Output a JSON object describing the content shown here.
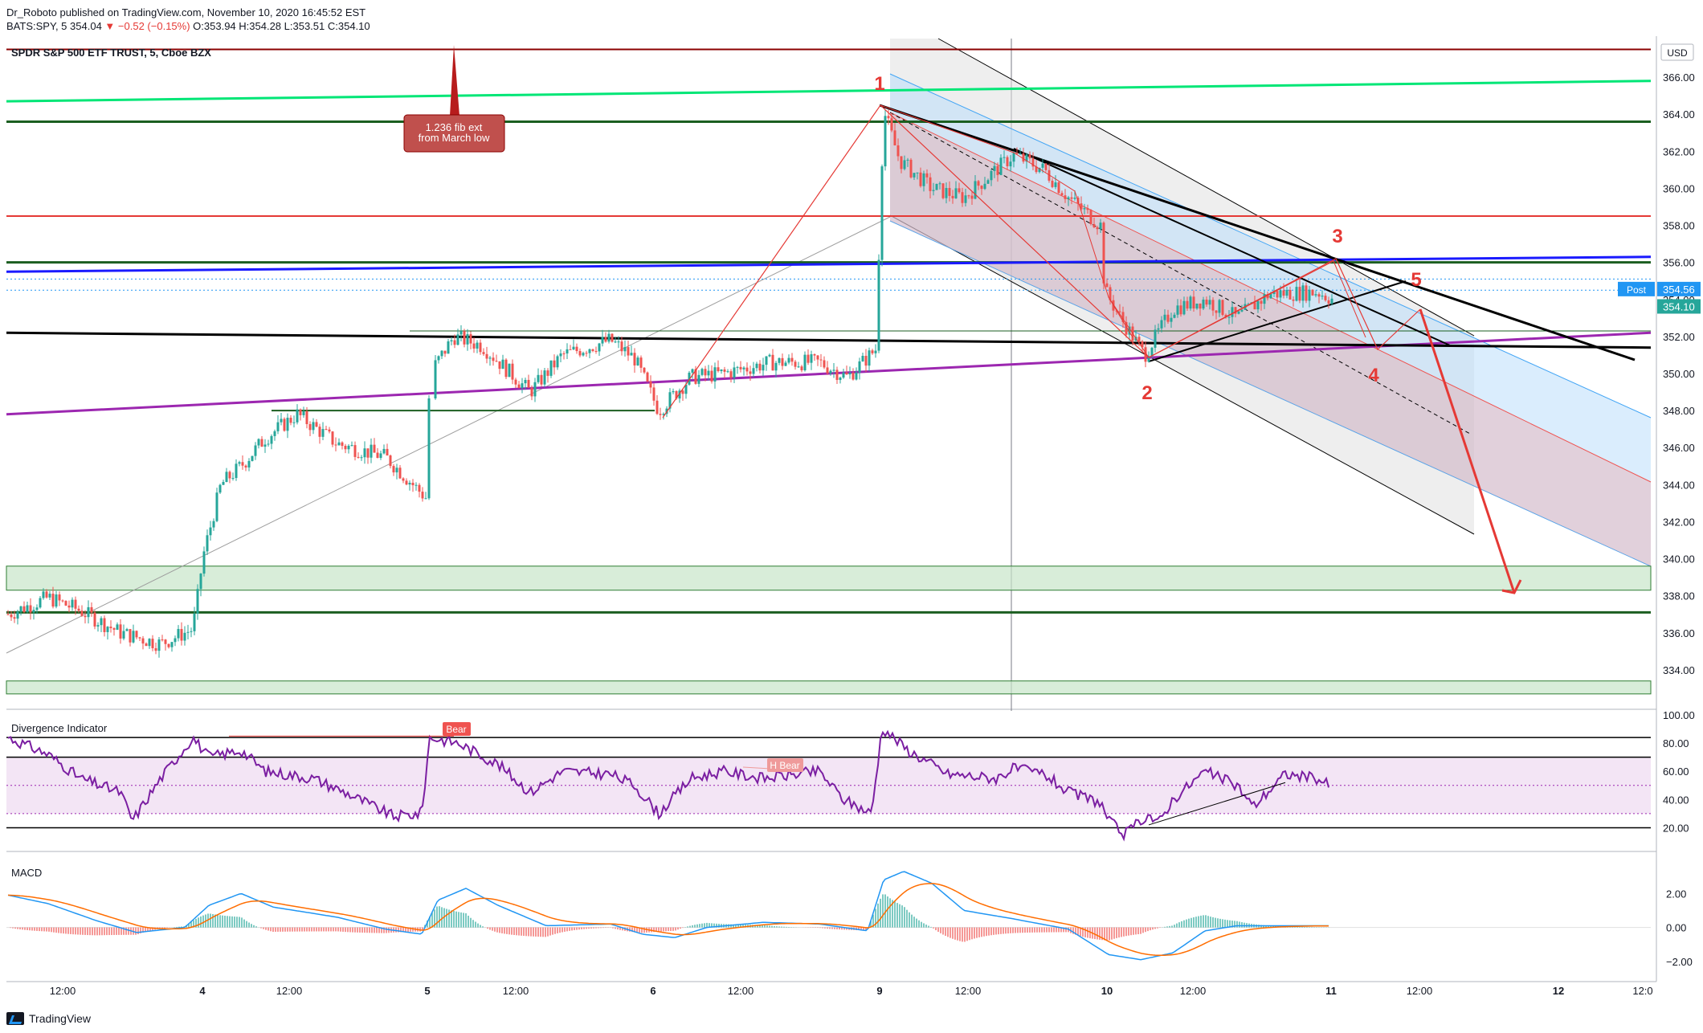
{
  "header": {
    "line1_user": "Dr_Roboto",
    "line1_text": " published on TradingView.com, November 10, 2020 16:45:52 EST",
    "symbol": "BATS:SPY, 5",
    "last": "354.04",
    "change": "−0.52 (−0.15%)",
    "ohlc": "O:353.94 H:354.28 L:353.51 C:354.10"
  },
  "main_title": "SPDR S&P 500 ETF TRUST, 5, Cboe BZX",
  "currency": "USD",
  "footer_brand": "TradingView",
  "colors": {
    "up": "#26a69a",
    "down": "#ef5350",
    "green_line": "#00e676",
    "dark_green": "#1b5e20",
    "red_line": "#e53935",
    "blue_line": "#1a1aff",
    "purple_line": "#9c27b0",
    "black_line": "#000000",
    "rsi_line": "#7b1fa2",
    "macd_line": "#2196f3",
    "signal_line": "#ff6d00"
  },
  "chart_data": [
    {
      "type": "candlestick",
      "ylim": [
        332,
        368
      ],
      "y_ticks": [
        "334.00",
        "336.00",
        "338.00",
        "340.00",
        "342.00",
        "344.00",
        "346.00",
        "348.00",
        "350.00",
        "352.00",
        "354.00",
        "356.00",
        "358.00",
        "360.00",
        "362.00",
        "364.00",
        "366.00"
      ],
      "x_tick_labels": [
        "12:00",
        "4",
        "12:00",
        "5",
        "12:00",
        "6",
        "12:00",
        "9",
        "12:00",
        "10",
        "12:00",
        "11",
        "12:00",
        "12",
        "12:0"
      ],
      "price_labels": [
        {
          "label": "Post",
          "value": "354.56"
        },
        {
          "label": "",
          "value": "354.10"
        }
      ],
      "horizontal_levels": [
        367.5,
        363.6,
        358.5,
        356.0,
        337.1
      ],
      "zones": [
        [
          338.3,
          339.6
        ],
        [
          332.7,
          333.4
        ]
      ],
      "wave_labels": [
        "1",
        "2",
        "3",
        "4",
        "5"
      ],
      "annotation": "1.236 fib ext\nfrom March low"
    },
    {
      "type": "line",
      "title": "Divergence Indicator",
      "ylim": [
        10,
        100
      ],
      "y_ticks": [
        "20.00",
        "40.00",
        "60.00",
        "80.00",
        "100.00"
      ],
      "levels": [
        84,
        70,
        30,
        20
      ],
      "labels": [
        "Bear",
        "H Bear"
      ]
    },
    {
      "type": "line",
      "title": "MACD",
      "ylim": [
        -3,
        4
      ],
      "y_ticks": [
        "−2.00",
        "0.00",
        "2.00"
      ]
    }
  ]
}
